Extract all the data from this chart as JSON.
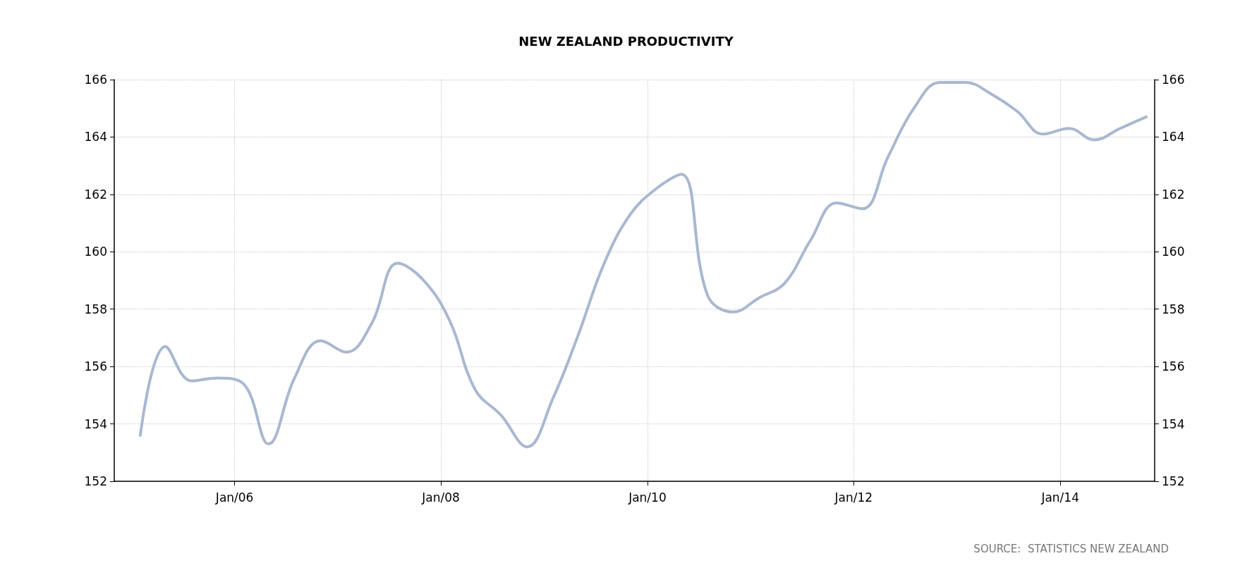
{
  "chart_data": {
    "type": "line",
    "title": "NEW ZEALAND PRODUCTIVITY",
    "annotations": [
      "SOURCE:  STATISTICS NEW ZEALAND"
    ],
    "x": [
      "2005-02",
      "2005-05",
      "2005-08",
      "2005-11",
      "2006-02",
      "2006-05",
      "2006-08",
      "2006-11",
      "2007-02",
      "2007-05",
      "2007-08",
      "2007-11",
      "2008-02",
      "2008-05",
      "2008-08",
      "2008-11",
      "2009-02",
      "2009-05",
      "2009-08",
      "2009-11",
      "2010-02",
      "2010-05",
      "2010-08",
      "2010-11",
      "2011-02",
      "2011-05",
      "2011-08",
      "2011-11",
      "2012-02",
      "2012-05",
      "2012-08",
      "2012-11",
      "2013-02",
      "2013-05",
      "2013-08",
      "2013-11",
      "2014-02",
      "2014-05",
      "2014-08",
      "2014-11"
    ],
    "series": [
      {
        "color": "#a9b8d0",
        "values": [
          153.6,
          156.7,
          155.5,
          155.6,
          155.4,
          153.3,
          155.6,
          156.9,
          156.5,
          157.5,
          159.6,
          159.0,
          157.6,
          155.2,
          154.3,
          153.2,
          154.9,
          157.1,
          159.6,
          161.3,
          162.2,
          162.7,
          158.5,
          157.9,
          158.4,
          158.9,
          160.4,
          161.7,
          161.5,
          163.3,
          165.0,
          165.9,
          165.9,
          165.5,
          164.9,
          164.1,
          164.3,
          163.9,
          164.3,
          164.7
        ]
      }
    ],
    "xlim": [
      "2004-11",
      "2014-12"
    ],
    "xticks": [
      {
        "value": "2006-01",
        "label": "Jan/06"
      },
      {
        "value": "2008-01",
        "label": "Jan/08"
      },
      {
        "value": "2010-01",
        "label": "Jan/10"
      },
      {
        "value": "2012-01",
        "label": "Jan/12"
      },
      {
        "value": "2014-01",
        "label": "Jan/14"
      }
    ],
    "ylim": [
      152,
      166
    ],
    "yticks": [
      152,
      154,
      156,
      158,
      160,
      162,
      164,
      166
    ],
    "y2lim": [
      152,
      166
    ],
    "y2ticks": [
      152,
      154,
      156,
      158,
      160,
      162,
      164,
      166
    ],
    "grid": true,
    "marker": "none",
    "line_style": "solid"
  }
}
